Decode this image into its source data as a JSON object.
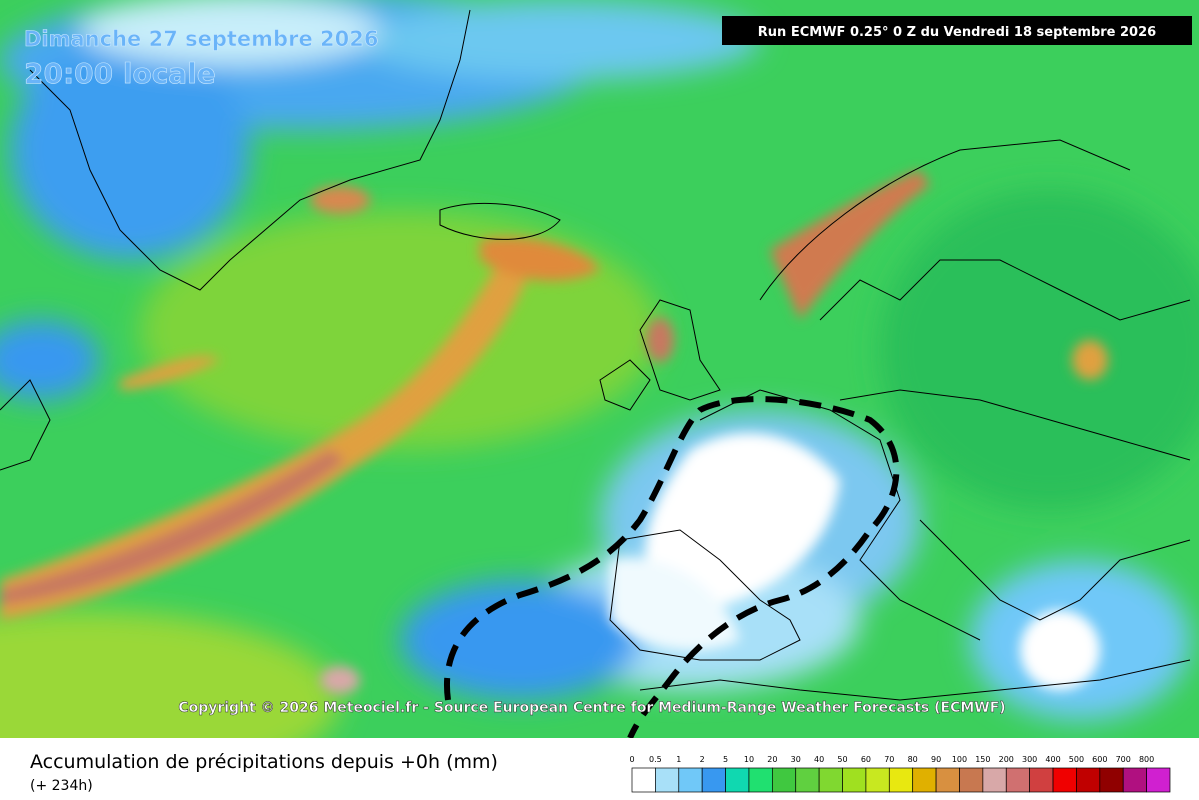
{
  "header": {
    "date": "Dimanche 27 septembre 2026",
    "time": "20:00 locale",
    "run": "Run ECMWF 0.25° 0 Z du Vendredi 18 septembre 2026"
  },
  "copyright": "Copyright © 2026 Meteociel.fr - Source European Centre for Medium-Range Weather Forecasts (ECMWF)",
  "legend": {
    "title": "Accumulation de précipitations depuis +0h (mm)",
    "lead": "(+ 234h)",
    "labels": [
      0,
      0.5,
      1,
      2,
      5,
      10,
      20,
      30,
      40,
      50,
      60,
      70,
      80,
      90,
      100,
      150,
      200,
      300,
      400,
      500,
      600,
      700,
      800
    ],
    "colors": [
      "#ffffff",
      "#a8e0f8",
      "#70c8f8",
      "#3898f0",
      "#10d8b0",
      "#20e070",
      "#40c840",
      "#60d040",
      "#80d830",
      "#a0e020",
      "#c8e820",
      "#e8e810",
      "#e0b000",
      "#d89040",
      "#c87850",
      "#d8a8a8",
      "#d07070",
      "#d04040",
      "#f00000",
      "#c00000",
      "#900000",
      "#b01080",
      "#d020d0"
    ]
  }
}
